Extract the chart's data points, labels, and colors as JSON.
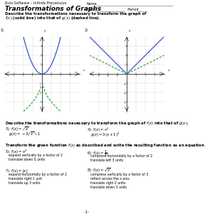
{
  "title": "Transformations of Graphs",
  "header_left": "Kuta Software – Infinite Precalculus",
  "section1_prompt_bold": "Describe the transformations necessary to transform the graph of",
  "section1_prompt_end": "(solid line) into that of",
  "section1_g": "g(x)",
  "section1_dashed": "(dashed line).",
  "section2_prompt": "Describe the transformations necessary to transform the graph of f(x) into that of g(x).",
  "section3_prompt": "Transform the given function f(x) as described and write the resulting function as an equation.",
  "graph1_blue_color": "#3355cc",
  "graph1_green_color": "#33aa33",
  "graph2_blue_color": "#3355cc",
  "graph2_green_color": "#33aa33",
  "page_number": "-1-"
}
